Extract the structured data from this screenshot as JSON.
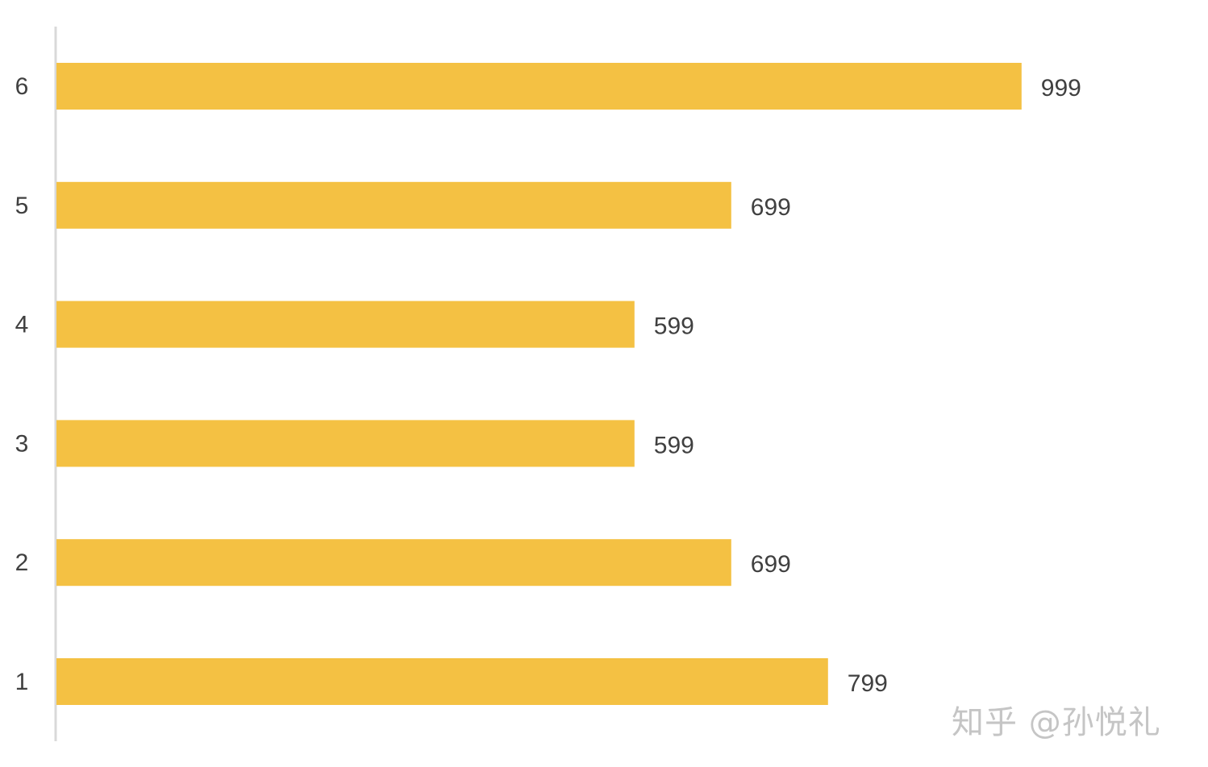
{
  "chart_data": {
    "type": "bar",
    "orientation": "horizontal",
    "categories": [
      "1",
      "2",
      "3",
      "4",
      "5",
      "6"
    ],
    "values": [
      799,
      699,
      599,
      599,
      699,
      999
    ],
    "data_labels": [
      "799",
      "699",
      "599",
      "599",
      "699",
      "999"
    ],
    "title": "",
    "xlabel": "",
    "ylabel": "",
    "xlim": [
      0,
      1000
    ],
    "grid": false,
    "legend": "none",
    "bar_color": "#F4C143",
    "axis_color": "#d9d9d9",
    "text_color": "#404040"
  },
  "watermark": {
    "text": "知乎 @孙悦礼"
  }
}
